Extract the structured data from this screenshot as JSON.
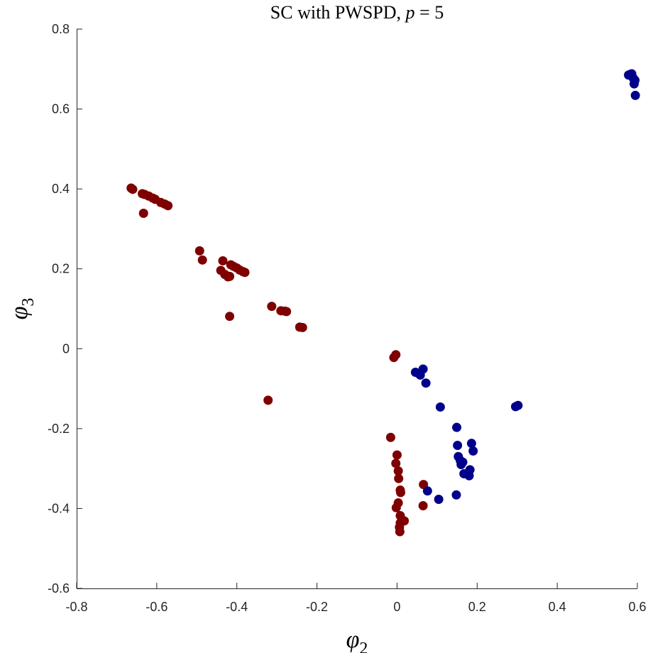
{
  "chart_data": {
    "type": "scatter",
    "title": "SC with PWSPD, p = 5",
    "title_parts": {
      "prefix": "SC with PWSPD, ",
      "var": "p",
      "suffix": " = 5"
    },
    "xlabel": {
      "symbol": "φ",
      "subscript": "2"
    },
    "ylabel": {
      "symbol": "φ",
      "subscript": "3"
    },
    "xlim": [
      -0.8,
      0.6
    ],
    "ylim": [
      -0.6,
      0.8
    ],
    "xticks": [
      -0.8,
      -0.6,
      -0.4,
      -0.2,
      0,
      0.2,
      0.4,
      0.6
    ],
    "xtick_labels": [
      "-0.8",
      "-0.6",
      "-0.4",
      "-0.2",
      "0",
      "0.2",
      "0.4",
      "0.6"
    ],
    "yticks": [
      -0.6,
      -0.4,
      -0.2,
      0,
      0.2,
      0.4,
      0.6,
      0.8
    ],
    "ytick_labels": [
      "-0.6",
      "-0.4",
      "-0.2",
      "0",
      "0.2",
      "0.4",
      "0.6",
      "0.8"
    ],
    "grid": false,
    "box": "left-bottom",
    "series": [
      {
        "color": "#7f0000",
        "points": [
          [
            -0.664,
            0.402
          ],
          [
            -0.66,
            0.399
          ],
          [
            -0.636,
            0.388
          ],
          [
            -0.63,
            0.386
          ],
          [
            -0.62,
            0.382
          ],
          [
            -0.61,
            0.377
          ],
          [
            -0.604,
            0.374
          ],
          [
            -0.59,
            0.366
          ],
          [
            -0.58,
            0.362
          ],
          [
            -0.572,
            0.358
          ],
          [
            -0.633,
            0.339
          ],
          [
            -0.493,
            0.245
          ],
          [
            -0.486,
            0.222
          ],
          [
            -0.44,
            0.196
          ],
          [
            -0.435,
            0.22
          ],
          [
            -0.43,
            0.186
          ],
          [
            -0.422,
            0.18
          ],
          [
            -0.418,
            0.181
          ],
          [
            -0.415,
            0.21
          ],
          [
            -0.408,
            0.206
          ],
          [
            -0.4,
            0.202
          ],
          [
            -0.393,
            0.197
          ],
          [
            -0.385,
            0.193
          ],
          [
            -0.38,
            0.191
          ],
          [
            -0.418,
            0.081
          ],
          [
            -0.313,
            0.106
          ],
          [
            -0.29,
            0.095
          ],
          [
            -0.28,
            0.094
          ],
          [
            -0.276,
            0.093
          ],
          [
            -0.243,
            0.054
          ],
          [
            -0.236,
            0.053
          ],
          [
            -0.322,
            -0.129
          ],
          [
            -0.003,
            -0.015
          ],
          [
            -0.008,
            -0.022
          ],
          [
            -0.016,
            -0.222
          ],
          [
            0.0,
            -0.266
          ],
          [
            -0.003,
            -0.287
          ],
          [
            0.003,
            -0.306
          ],
          [
            0.004,
            -0.325
          ],
          [
            0.008,
            -0.354
          ],
          [
            0.009,
            -0.36
          ],
          [
            0.003,
            -0.386
          ],
          [
            -0.002,
            -0.398
          ],
          [
            0.008,
            -0.418
          ],
          [
            0.018,
            -0.431
          ],
          [
            0.008,
            -0.436
          ],
          [
            0.006,
            -0.447
          ],
          [
            0.007,
            -0.458
          ],
          [
            0.066,
            -0.34
          ],
          [
            0.065,
            -0.393
          ]
        ]
      },
      {
        "color": "#00008b",
        "points": [
          [
            0.578,
            0.685
          ],
          [
            0.583,
            0.687
          ],
          [
            0.586,
            0.688
          ],
          [
            0.59,
            0.677
          ],
          [
            0.594,
            0.672
          ],
          [
            0.592,
            0.663
          ],
          [
            0.595,
            0.634
          ],
          [
            0.046,
            -0.059
          ],
          [
            0.054,
            -0.062
          ],
          [
            0.058,
            -0.066
          ],
          [
            0.065,
            -0.051
          ],
          [
            0.072,
            -0.086
          ],
          [
            0.108,
            -0.146
          ],
          [
            0.296,
            -0.145
          ],
          [
            0.302,
            -0.142
          ],
          [
            0.149,
            -0.197
          ],
          [
            0.151,
            -0.242
          ],
          [
            0.186,
            -0.237
          ],
          [
            0.19,
            -0.256
          ],
          [
            0.153,
            -0.27
          ],
          [
            0.158,
            -0.28
          ],
          [
            0.164,
            -0.284
          ],
          [
            0.16,
            -0.29
          ],
          [
            0.167,
            -0.313
          ],
          [
            0.182,
            -0.303
          ],
          [
            0.18,
            -0.318
          ],
          [
            0.076,
            -0.356
          ],
          [
            0.104,
            -0.377
          ],
          [
            0.148,
            -0.366
          ]
        ]
      }
    ]
  }
}
